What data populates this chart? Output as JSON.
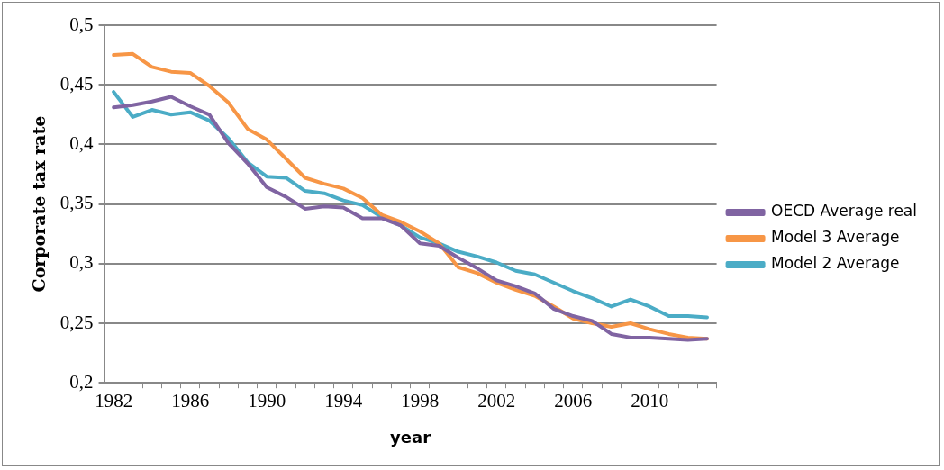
{
  "chart_data": {
    "type": "line",
    "xlabel": "year",
    "ylabel": "Corporate tax rate",
    "categories": [
      "1982",
      null,
      null,
      null,
      "1986",
      null,
      null,
      null,
      "1990",
      null,
      null,
      null,
      "1994",
      null,
      null,
      null,
      "1998",
      null,
      null,
      null,
      "2002",
      null,
      null,
      null,
      "2006",
      null,
      null,
      null,
      "2010",
      null,
      null,
      null
    ],
    "series": [
      {
        "name": "OECD Average real",
        "color": "#8064a2",
        "values": [
          0.431,
          0.433,
          0.436,
          0.44,
          0.432,
          0.425,
          0.401,
          0.384,
          0.364,
          0.356,
          0.346,
          0.348,
          0.347,
          0.338,
          0.338,
          0.332,
          0.317,
          0.315,
          0.305,
          0.296,
          0.286,
          0.281,
          0.275,
          0.262,
          0.256,
          0.252,
          0.241,
          0.238,
          0.238,
          0.237,
          0.236,
          0.237
        ]
      },
      {
        "name": "Model 3 Average",
        "color": "#f79646",
        "values": [
          0.475,
          0.476,
          0.465,
          0.461,
          0.46,
          0.449,
          0.435,
          0.413,
          0.404,
          0.388,
          0.372,
          0.367,
          0.363,
          0.355,
          0.341,
          0.335,
          0.327,
          0.317,
          0.297,
          0.292,
          0.284,
          0.278,
          0.273,
          0.264,
          0.254,
          0.25,
          0.247,
          0.25,
          0.245,
          0.241,
          0.238,
          0.237
        ]
      },
      {
        "name": "Model 2 Average",
        "color": "#4bacc6",
        "values": [
          0.444,
          0.423,
          0.429,
          0.425,
          0.427,
          0.42,
          0.405,
          0.385,
          0.373,
          0.372,
          0.361,
          0.359,
          0.353,
          0.349,
          0.339,
          0.332,
          0.322,
          0.317,
          0.31,
          0.306,
          0.301,
          0.294,
          0.291,
          0.284,
          0.277,
          0.271,
          0.264,
          0.27,
          0.264,
          0.256,
          0.256,
          0.255
        ]
      }
    ],
    "ylim": [
      0.2,
      0.5
    ],
    "yticks": [
      {
        "value": 0.2,
        "label": "0,2"
      },
      {
        "value": 0.25,
        "label": "0,25"
      },
      {
        "value": 0.3,
        "label": "0,3"
      },
      {
        "value": 0.35,
        "label": "0,35"
      },
      {
        "value": 0.4,
        "label": "0,4"
      },
      {
        "value": 0.45,
        "label": "0,45"
      },
      {
        "value": 0.5,
        "label": "0,5"
      }
    ],
    "grid": "y",
    "legend": "right",
    "marker": "none",
    "line_style": "solid"
  }
}
